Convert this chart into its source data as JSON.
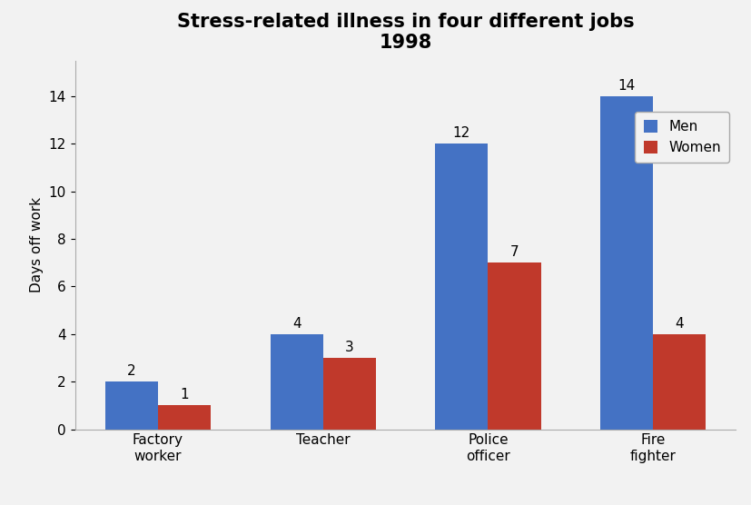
{
  "title": "Stress-related illness in four different jobs\n1998",
  "ylabel": "Days off work",
  "categories": [
    "Factory\nworker",
    "Teacher",
    "Police\nofficer",
    "Fire\nfighter"
  ],
  "men_values": [
    2,
    4,
    12,
    14
  ],
  "women_values": [
    1,
    3,
    7,
    4
  ],
  "men_color": "#4472c4",
  "women_color": "#c0392b",
  "ylim": [
    0,
    15.5
  ],
  "yticks": [
    0,
    2,
    4,
    6,
    8,
    10,
    12,
    14
  ],
  "bar_width": 0.32,
  "legend_labels": [
    "Men",
    "Women"
  ],
  "title_fontsize": 15,
  "label_fontsize": 11,
  "tick_fontsize": 11,
  "annotation_fontsize": 11,
  "figure_bg": "#f2f2f2",
  "axes_bg": "#f2f2f2"
}
